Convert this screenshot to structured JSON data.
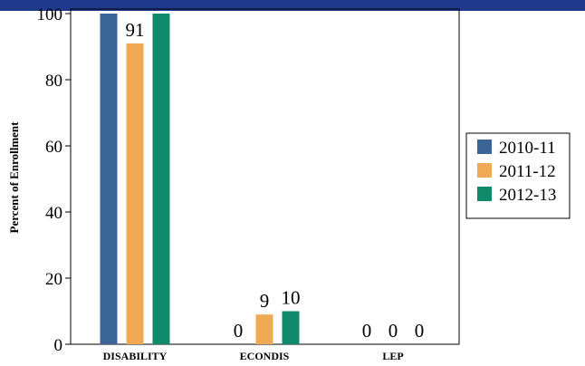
{
  "chart_data": {
    "type": "bar",
    "ylabel": "Percent of Enrollment",
    "xlabel": "",
    "ylim": [
      0,
      100
    ],
    "yticks": [
      0,
      20,
      40,
      60,
      80,
      100
    ],
    "categories": [
      "DISABILITY",
      "ECONDIS",
      "LEP"
    ],
    "series": [
      {
        "name": "2010-11",
        "color": "#3a6596",
        "values": [
          100,
          0,
          0
        ],
        "labels": [
          "",
          "0",
          "0"
        ]
      },
      {
        "name": "2011-12",
        "color": "#f0a955",
        "values": [
          91,
          9,
          0
        ],
        "labels": [
          "91",
          "9",
          "0"
        ]
      },
      {
        "name": "2012-13",
        "color": "#0f8a6a",
        "values": [
          100,
          10,
          0
        ],
        "labels": [
          "",
          "10",
          "0"
        ]
      }
    ],
    "legend_position": "right",
    "grid": false,
    "header_band_color": "#1f3a8a"
  }
}
